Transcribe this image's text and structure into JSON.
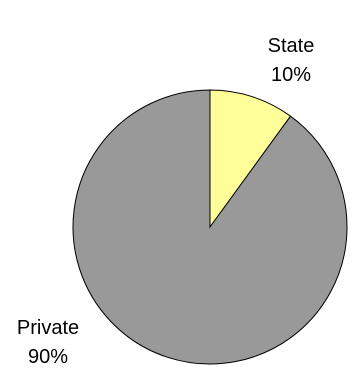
{
  "chart_data": {
    "type": "pie",
    "title": "",
    "slices": [
      {
        "label": "State",
        "value": 10,
        "value_label": "10%",
        "color": "#ffff99"
      },
      {
        "label": "Private",
        "value": 90,
        "value_label": "90%",
        "color": "#999999"
      }
    ],
    "start_angle": "12 o'clock",
    "direction": "clockwise",
    "legend": "none",
    "outline_color": "#000000"
  }
}
